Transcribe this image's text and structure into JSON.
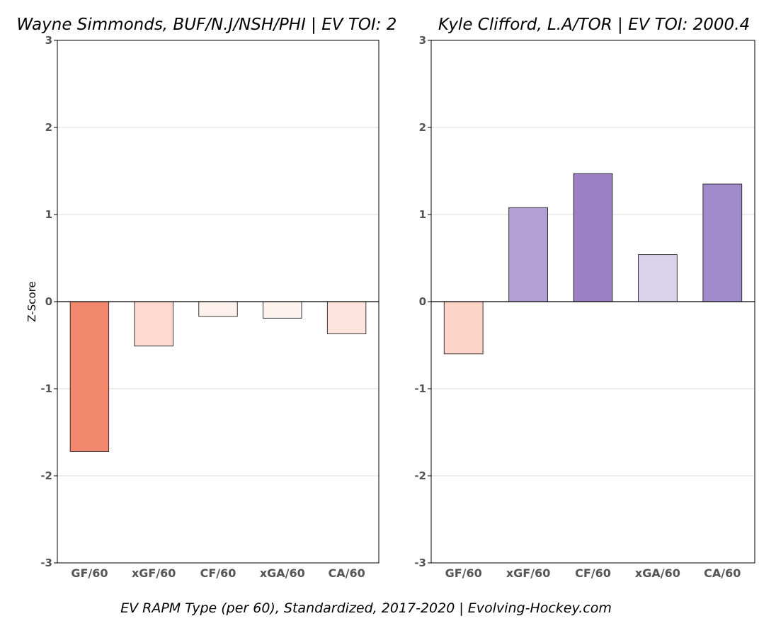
{
  "footer": "EV RAPM Type (per 60), Standardized, 2017-2020   |    Evolving-Hockey.com",
  "chart_data": [
    {
      "type": "bar",
      "title": "Wayne Simmonds, BUF/N.J/NSH/PHI  |  EV TOI: 2",
      "ylabel": "Z-Score",
      "xlabel": "",
      "ylim": [
        -3,
        3
      ],
      "yticks": [
        3,
        2,
        1,
        0,
        -1,
        -2,
        -3
      ],
      "grid": true,
      "categories": [
        "GF/60",
        "xGF/60",
        "CF/60",
        "xGA/60",
        "CA/60"
      ],
      "values": [
        -1.72,
        -0.51,
        -0.17,
        -0.19,
        -0.37
      ],
      "colors": [
        "#f2896f",
        "#fdd9cf",
        "#fef0ec",
        "#fef2ef",
        "#fde4dc"
      ]
    },
    {
      "type": "bar",
      "title": "Kyle Clifford, L.A/TOR  |  EV TOI: 2000.4",
      "ylabel": "",
      "xlabel": "",
      "ylim": [
        -3,
        3
      ],
      "yticks": [
        3,
        2,
        1,
        0,
        -1,
        -2,
        -3
      ],
      "grid": true,
      "categories": [
        "GF/60",
        "xGF/60",
        "CF/60",
        "xGA/60",
        "CA/60"
      ],
      "values": [
        -0.6,
        1.08,
        1.47,
        0.54,
        1.35
      ],
      "colors": [
        "#fdd4c8",
        "#b39fd3",
        "#9b80c6",
        "#dad1ea",
        "#a18bca"
      ]
    }
  ]
}
